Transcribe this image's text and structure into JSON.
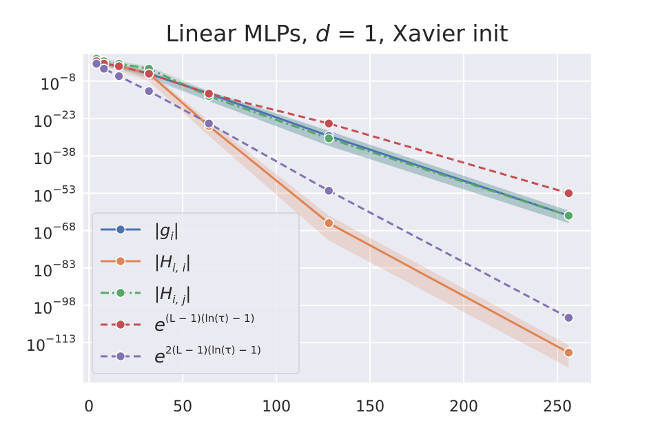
{
  "chart_data": {
    "type": "line",
    "title": "Linear MLPs, d = 1, Xavier init",
    "title_parts": {
      "prefix": "Linear MLPs, ",
      "var": "d",
      "eq": " = 1, Xavier init"
    },
    "xlabel": "",
    "ylabel": "",
    "x_scale": "linear",
    "y_scale": "log10",
    "xlim": [
      -3,
      268
    ],
    "ylim_exponent": [
      -129,
      3
    ],
    "x_ticks": [
      0,
      50,
      100,
      150,
      200,
      250
    ],
    "y_ticks": [
      {
        "exponent": -8,
        "label": "10",
        "sup": "−8"
      },
      {
        "exponent": -23,
        "label": "10",
        "sup": "−23"
      },
      {
        "exponent": -38,
        "label": "10",
        "sup": "−38"
      },
      {
        "exponent": -53,
        "label": "10",
        "sup": "−53"
      },
      {
        "exponent": -68,
        "label": "10",
        "sup": "−68"
      },
      {
        "exponent": -83,
        "label": "10",
        "sup": "−83"
      },
      {
        "exponent": -98,
        "label": "10",
        "sup": "−98"
      },
      {
        "exponent": -113,
        "label": "10",
        "sup": "−113"
      }
    ],
    "grid": true,
    "legend_position": "lower-left",
    "series": [
      {
        "name": "|g_i|",
        "legend_label": {
          "open": "|",
          "var": "g",
          "sub": "i",
          "close": "|"
        },
        "color": "#4c72b0",
        "dash": "solid",
        "x": [
          4,
          8,
          16,
          32,
          64,
          128,
          256
        ],
        "y_exponent": [
          0,
          -1,
          -2,
          -5,
          -13,
          -30,
          -62
        ],
        "band_low": [
          -1,
          -2,
          -3,
          -7,
          -16,
          -34,
          -65
        ],
        "band_high": [
          0.5,
          0,
          -1,
          -4,
          -12,
          -28,
          -60
        ]
      },
      {
        "name": "|H_{i,i}|",
        "legend_label": {
          "open": "|",
          "var": "H",
          "sub": "i, i",
          "close": "|"
        },
        "color": "#dd8452",
        "dash": "solid",
        "x": [
          4,
          8,
          16,
          32,
          64,
          128,
          256
        ],
        "y_exponent": [
          0,
          -1,
          -2,
          -5,
          -26,
          -65,
          -117
        ],
        "band_low": [
          -1,
          -2,
          -4,
          -8,
          -30,
          -72,
          -123
        ],
        "band_high": [
          0.5,
          0,
          -1,
          -4,
          -24,
          -62,
          -114
        ]
      },
      {
        "name": "|H_{i,j}|",
        "legend_label": {
          "open": "|",
          "var": "H",
          "sub": "i, j",
          "close": "|"
        },
        "color": "#55a868",
        "dash": "dashdot",
        "x": [
          4,
          8,
          16,
          32,
          64,
          128,
          256
        ],
        "y_exponent": [
          1,
          0,
          -1,
          -3,
          -14,
          -31,
          -62
        ],
        "band_low": [
          -1,
          -2,
          -3,
          -6,
          -16,
          -34,
          -65
        ],
        "band_high": [
          1.5,
          1,
          0,
          -2,
          -12,
          -28,
          -60
        ]
      },
      {
        "name": "e^{(L-1)(ln(τ)-1)}",
        "legend_label": {
          "base": "e",
          "sup": "(L − 1)(ln(τ) − 1)"
        },
        "color": "#c44e52",
        "dash": "dashed",
        "x": [
          4,
          8,
          16,
          32,
          64,
          128,
          256
        ],
        "y_exponent": [
          0,
          -1,
          -2,
          -5,
          -13,
          -25,
          -53
        ],
        "band_low": null,
        "band_high": null
      },
      {
        "name": "e^{2(L-1)(ln(τ)-1)}",
        "legend_label": {
          "base": "e",
          "sup": "2(L − 1)(ln(τ) − 1)"
        },
        "color": "#8172b2",
        "dash": "dashed",
        "x": [
          4,
          8,
          16,
          32,
          64,
          128,
          256
        ],
        "y_exponent": [
          -1,
          -3,
          -6,
          -12,
          -25,
          -52,
          -103
        ],
        "band_low": null,
        "band_high": null
      }
    ]
  }
}
